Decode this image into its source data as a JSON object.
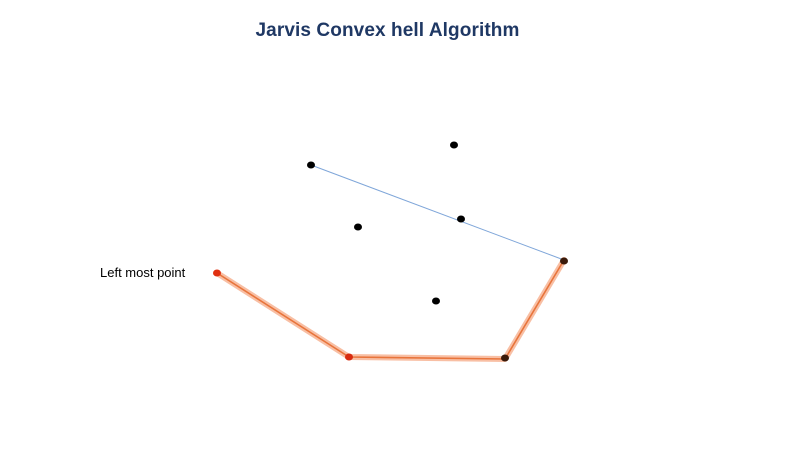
{
  "slide": {
    "title": "Jarvis Convex hell Algorithm",
    "label": "Left most point"
  },
  "colors": {
    "title": "#1f3864",
    "hull_edge": "#f4a582",
    "hull_edge_core": "#e8743b",
    "candidate_line": "#7fa6d9",
    "point": "#000000",
    "hull_point": "#e03010"
  },
  "points": [
    {
      "id": "p-leftmost",
      "role": "hull"
    },
    {
      "id": "p-bottom-left",
      "role": "hull"
    },
    {
      "id": "p-bottom-right",
      "role": "hull-dark"
    },
    {
      "id": "p-right",
      "role": "hull-dark"
    },
    {
      "id": "p-top-left",
      "role": "normal"
    },
    {
      "id": "p-top",
      "role": "normal"
    },
    {
      "id": "p-middle",
      "role": "normal"
    },
    {
      "id": "p-inner-left",
      "role": "normal"
    },
    {
      "id": "p-inner-bottom",
      "role": "normal"
    }
  ]
}
